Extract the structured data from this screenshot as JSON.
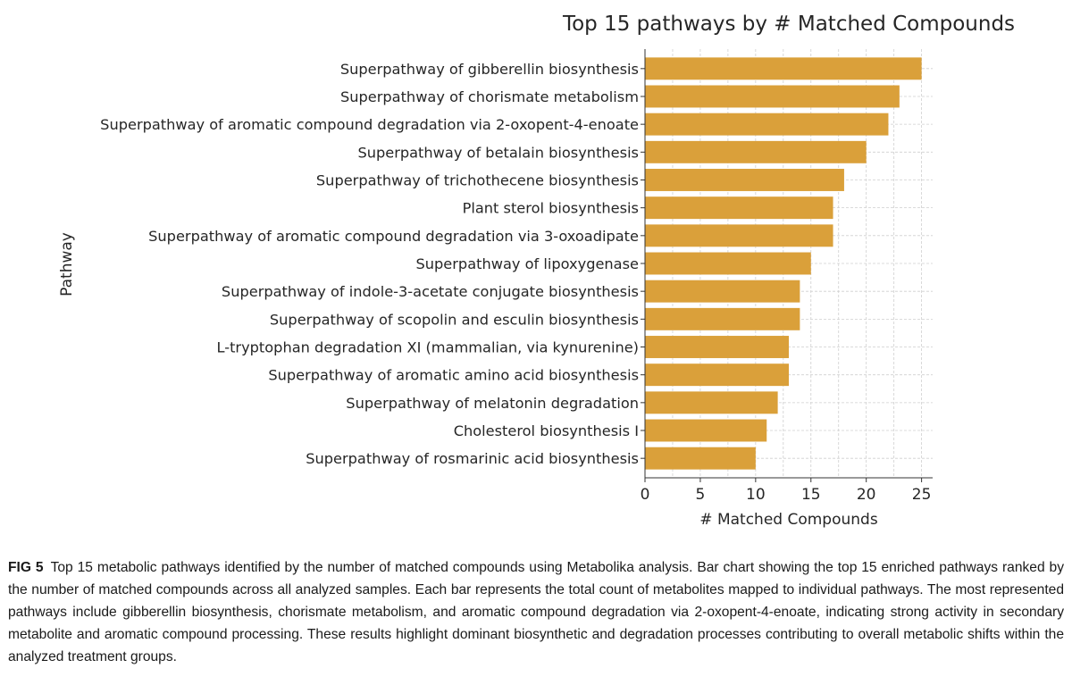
{
  "chart_data": {
    "type": "bar",
    "orientation": "horizontal",
    "title": "Top 15 pathways by # Matched Compounds",
    "xlabel": "# Matched Compounds",
    "ylabel": "Pathway",
    "xlim": [
      0,
      26
    ],
    "xticks": [
      0,
      5,
      10,
      15,
      20,
      25
    ],
    "grid": true,
    "bar_color": "#DAA03A",
    "categories": [
      "Superpathway of gibberellin biosynthesis",
      "Superpathway of chorismate metabolism",
      "Superpathway of aromatic compound degradation via 2-oxopent-4-enoate",
      "Superpathway of betalain biosynthesis",
      "Superpathway of trichothecene biosynthesis",
      "Plant sterol biosynthesis",
      "Superpathway of aromatic compound degradation via 3-oxoadipate",
      "Superpathway of lipoxygenase",
      "Superpathway of indole-3-acetate conjugate biosynthesis",
      "Superpathway of scopolin and esculin biosynthesis",
      "L-tryptophan degradation XI (mammalian, via kynurenine)",
      "Superpathway of aromatic amino acid biosynthesis",
      "Superpathway of melatonin degradation",
      "Cholesterol biosynthesis I",
      "Superpathway of rosmarinic acid biosynthesis"
    ],
    "values": [
      25,
      23,
      22,
      20,
      18,
      17,
      17,
      15,
      14,
      14,
      13,
      13,
      12,
      11,
      10
    ]
  },
  "caption": {
    "label": "FIG 5",
    "text": "Top 15 metabolic pathways identified by the number of matched compounds using Metabolika analysis. Bar chart showing the top 15 enriched pathways ranked by the number of matched compounds across all analyzed samples. Each bar represents the total count of metabolites mapped to individual pathways. The most represented pathways include gibberellin biosynthesis, chorismate metabolism, and aromatic compound degradation via 2-oxopent-4-enoate, indicating strong activity in secondary metabolite and aromatic compound processing. These results highlight dominant biosynthetic and degradation processes contributing to overall metabolic shifts within the analyzed treatment groups."
  }
}
